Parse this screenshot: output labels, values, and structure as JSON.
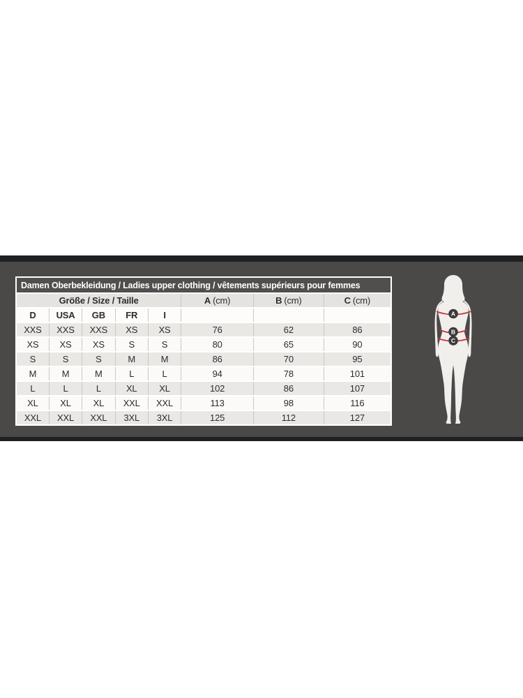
{
  "table": {
    "title": "Damen Oberbekleidung / Ladies upper clothing / vêtements supérieurs pour femmes",
    "size_header": "Größe / Size / Taille",
    "measure_cols": [
      {
        "letter": "A",
        "unit": "(cm)"
      },
      {
        "letter": "B",
        "unit": "(cm)"
      },
      {
        "letter": "C",
        "unit": "(cm)"
      }
    ],
    "country_cols": [
      "D",
      "USA",
      "GB",
      "FR",
      "I"
    ],
    "rows": [
      [
        "XXS",
        "XXS",
        "XXS",
        "XS",
        "XS",
        "76",
        "62",
        "86"
      ],
      [
        "XS",
        "XS",
        "XS",
        "S",
        "S",
        "80",
        "65",
        "90"
      ],
      [
        "S",
        "S",
        "S",
        "M",
        "M",
        "86",
        "70",
        "95"
      ],
      [
        "M",
        "M",
        "M",
        "L",
        "L",
        "94",
        "78",
        "101"
      ],
      [
        "L",
        "L",
        "L",
        "XL",
        "XL",
        "102",
        "86",
        "107"
      ],
      [
        "XL",
        "XL",
        "XL",
        "XXL",
        "XXL",
        "113",
        "98",
        "116"
      ],
      [
        "XXL",
        "XXL",
        "XXL",
        "3XL",
        "3XL",
        "125",
        "112",
        "127"
      ]
    ]
  },
  "figure": {
    "markers": [
      "A",
      "B",
      "C"
    ]
  },
  "colors": {
    "band_gray": "#4a4948",
    "band_black": "#1f2022",
    "title_bg": "#514f4e",
    "header_bg": "#e4e3e0",
    "row_shade": "#e9e8e5",
    "row_plain": "#fbfaf8",
    "accent_red": "#c5353b",
    "marker_bg": "#3a393b",
    "silhouette": "#f1efec"
  }
}
